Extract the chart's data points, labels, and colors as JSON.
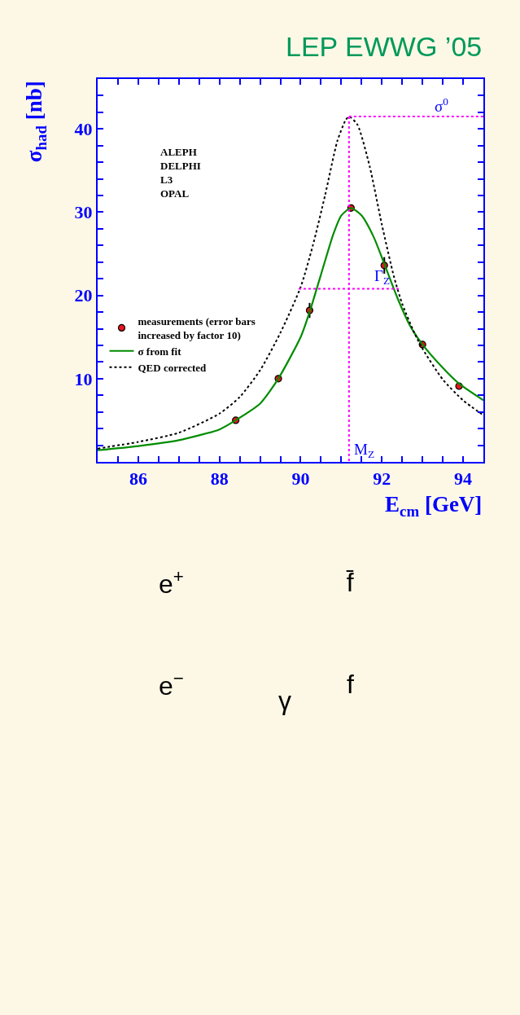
{
  "chart_data": {
    "type": "line",
    "title": "LEP EWWG ’05",
    "xlabel": "E$_{cm}$ [GeV]",
    "ylabel": "σ$_{had}$ [nb]",
    "xlim": [
      85,
      94.5
    ],
    "ylim": [
      0,
      46
    ],
    "xticks": [
      {
        "value": 85,
        "label": null
      },
      {
        "value": 85.5,
        "label": null
      },
      86,
      {
        "value": 86.5,
        "label": null
      },
      {
        "value": 87,
        "label": null
      },
      {
        "value": 87.5,
        "label": null
      },
      88,
      {
        "value": 88.5,
        "label": null
      },
      {
        "value": 89,
        "label": null
      },
      {
        "value": 89.5,
        "label": null
      },
      90,
      {
        "value": 90.5,
        "label": null
      },
      {
        "value": 91,
        "label": null
      },
      {
        "value": 91.5,
        "label": null
      },
      92,
      {
        "value": 92.5,
        "label": null
      },
      {
        "value": 93,
        "label": null
      },
      {
        "value": 93.5,
        "label": null
      },
      94
    ],
    "yticks": [
      {
        "value": 2,
        "label": null
      },
      {
        "value": 4,
        "label": null
      },
      {
        "value": 6,
        "label": null
      },
      {
        "value": 8,
        "label": null
      },
      10,
      {
        "value": 12,
        "label": null
      },
      {
        "value": 14,
        "label": null
      },
      {
        "value": 16,
        "label": null
      },
      {
        "value": 18,
        "label": null
      },
      20,
      {
        "value": 22,
        "label": null
      },
      {
        "value": 24,
        "label": null
      },
      {
        "value": 26,
        "label": null
      },
      {
        "value": 28,
        "label": null
      },
      30,
      {
        "value": 32,
        "label": null
      },
      {
        "value": 34,
        "label": null
      },
      {
        "value": 36,
        "label": null
      },
      {
        "value": 38,
        "label": null
      },
      40,
      {
        "value": 42,
        "label": null
      },
      {
        "value": 44,
        "label": null
      }
    ],
    "legend": "left",
    "series": [
      {
        "name": "measurements (error bars\nincreased by factor 10)",
        "type": "scatter",
        "marker": "circle",
        "color": "#e8141c",
        "x": [
          88.4,
          89.45,
          90.22,
          91.24,
          92.06,
          93.0,
          93.9
        ],
        "values": [
          5.0,
          10.0,
          18.2,
          30.5,
          23.6,
          14.1,
          9.1
        ],
        "errors": [
          0.3,
          0.3,
          0.9,
          0.4,
          1.0,
          0.4,
          0.4
        ]
      },
      {
        "name": "σ from fit",
        "marker": "none",
        "line_style": "solid",
        "color": "#008c00",
        "x": [
          85.0,
          86.0,
          87.0,
          88.0,
          88.4,
          89.0,
          89.45,
          90.0,
          90.22,
          90.5,
          90.8,
          91.0,
          91.24,
          91.5,
          91.8,
          92.06,
          92.4,
          92.7,
          93.0,
          93.5,
          93.9,
          94.5
        ],
        "values": [
          1.4,
          1.9,
          2.6,
          3.9,
          5.0,
          7.0,
          10.0,
          15.0,
          18.0,
          22.5,
          27.3,
          29.6,
          30.5,
          29.6,
          27.0,
          23.8,
          19.5,
          16.3,
          14.1,
          11.3,
          9.4,
          7.4
        ]
      },
      {
        "name": "QED corrected",
        "marker": "none",
        "line_style": "dotted",
        "color": "#000000",
        "x": [
          85.0,
          86.0,
          87.0,
          88.0,
          88.5,
          89.0,
          89.5,
          90.0,
          90.3,
          90.6,
          90.9,
          91.1,
          91.19,
          91.4,
          91.7,
          92.0,
          92.3,
          92.5,
          92.8,
          93.0,
          93.5,
          94.0,
          94.5
        ],
        "values": [
          1.6,
          2.4,
          3.5,
          5.8,
          7.8,
          11.0,
          15.5,
          21.0,
          26.0,
          32.0,
          38.5,
          41.0,
          41.5,
          40.5,
          35.5,
          28.5,
          22.2,
          19.0,
          15.5,
          13.6,
          9.9,
          7.4,
          5.6
        ]
      },
      {
        "marker": "none",
        "line_style": "dotted",
        "color": "#ff00ff",
        "x": [
          91.19,
          91.19
        ],
        "values": [
          41.5,
          0
        ]
      },
      {
        "marker": "none",
        "line_style": "dotted",
        "color": "#ff00ff",
        "x": [
          91.19,
          94.5
        ],
        "values": [
          41.5,
          41.5
        ]
      },
      {
        "marker": "none",
        "line_style": "dotted",
        "color": "#ff00ff",
        "x": [
          89.95,
          92.45
        ],
        "values": [
          20.8,
          20.8
        ]
      }
    ],
    "annotations": [
      {
        "text": "σ$^{0}$",
        "x": 93.8,
        "y": 41.5
      },
      {
        "text": "Γ$_{Z}$",
        "x": 91.7,
        "y": 20.8
      },
      {
        "text": "M$_{Z}$",
        "x": 91.19,
        "y": 0
      },
      "ALEPH\nDELPHI\nL3\nOPAL",
      "e$^{+}$",
      "e$^{−}$",
      "f̄",
      "f",
      "γ"
    ]
  }
}
